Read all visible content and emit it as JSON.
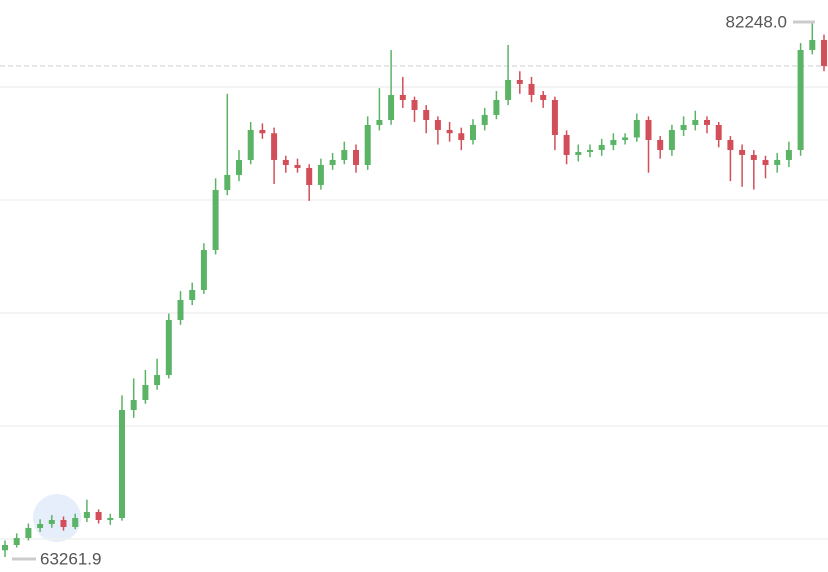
{
  "chart_data": {
    "type": "candlestick",
    "open": [
      63500,
      63688,
      63936,
      64291,
      64433,
      64575,
      64327,
      64646,
      64859,
      64575,
      64646,
      68479,
      68834,
      69366,
      69721,
      71673,
      72383,
      72738,
      74157,
      76287,
      76819,
      77352,
      78416,
      78300,
      77352,
      77174,
      77068,
      76464,
      77174,
      77352,
      77706,
      77174,
      78594,
      78771,
      79658,
      79481,
      79126,
      78771,
      78416,
      78300,
      78061,
      78594,
      78949,
      79481,
      80191,
      80050,
      79658,
      79481,
      78239,
      77529,
      77635,
      77706,
      77884,
      78061,
      78150,
      78771,
      78061,
      77706,
      78416,
      78594,
      78771,
      78594,
      78061,
      77706,
      77529,
      77352,
      77174,
      77352,
      77706,
      81255,
      81610
    ],
    "high": [
      63850,
      64100,
      64450,
      64600,
      64750,
      64700,
      64800,
      65300,
      64950,
      64800,
      69000,
      69600,
      69900,
      70300,
      71900,
      72700,
      73000,
      74400,
      76700,
      79700,
      77700,
      78700,
      78650,
      78500,
      77500,
      77400,
      77200,
      77400,
      77600,
      78000,
      77900,
      78900,
      79900,
      81255,
      80300,
      79600,
      79300,
      78900,
      78700,
      78500,
      78800,
      79200,
      79800,
      81433,
      80500,
      80300,
      79800,
      79600,
      78400,
      77900,
      77900,
      78100,
      78300,
      78300,
      79000,
      78900,
      78200,
      78600,
      78900,
      79100,
      78900,
      78700,
      78200,
      77900,
      77700,
      77500,
      77600,
      78000,
      81500,
      82248,
      81800
    ],
    "low": [
      63262,
      63600,
      63850,
      64150,
      64300,
      64200,
      64250,
      64500,
      64450,
      64400,
      64550,
      68200,
      68700,
      69200,
      69600,
      71500,
      72200,
      72600,
      74000,
      76100,
      76600,
      77200,
      78100,
      76500,
      76900,
      76900,
      75900,
      76300,
      77000,
      77200,
      76900,
      77000,
      78400,
      78600,
      79200,
      78700,
      78300,
      77900,
      78000,
      77700,
      77900,
      78400,
      78800,
      79300,
      79700,
      79400,
      79200,
      77700,
      77200,
      77300,
      77450,
      77500,
      77700,
      77900,
      78000,
      76900,
      77400,
      77500,
      78200,
      78400,
      78300,
      77800,
      76600,
      76400,
      76300,
      76700,
      76900,
      77100,
      77500,
      81100,
      80500
    ],
    "close": [
      63688,
      63936,
      64291,
      64433,
      64575,
      64327,
      64646,
      64859,
      64575,
      64646,
      68479,
      68834,
      69366,
      69721,
      71673,
      72383,
      72738,
      74157,
      76287,
      76819,
      77352,
      78416,
      78300,
      77352,
      77174,
      77068,
      76464,
      77174,
      77352,
      77706,
      77174,
      78594,
      78771,
      79658,
      79481,
      79126,
      78771,
      78416,
      78300,
      78061,
      78594,
      78949,
      79481,
      80191,
      80050,
      79658,
      79481,
      78239,
      77529,
      77635,
      77706,
      77884,
      78061,
      78150,
      78771,
      78061,
      77706,
      78416,
      78594,
      78771,
      78594,
      78061,
      77706,
      77529,
      77352,
      77174,
      77352,
      77706,
      81255,
      81610,
      80688
    ],
    "up_color": "#5bb466",
    "down_color": "#d24f5a",
    "max_label": {
      "value": 82248,
      "label": "82248.0"
    },
    "min_label": {
      "value": 63261.9,
      "label": "63261.9"
    },
    "grid_levels": [
      63900,
      67910,
      71920,
      75930,
      79940
    ]
  }
}
